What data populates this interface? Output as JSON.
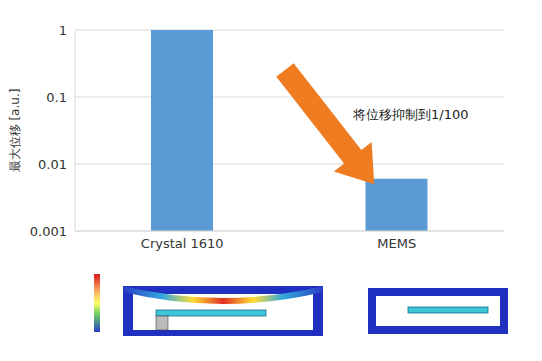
{
  "chart_data": {
    "type": "bar",
    "categories": [
      "Crystal 1610",
      "MEMS"
    ],
    "values": [
      1,
      0.006
    ],
    "color": "#5b9bd5",
    "ylabel": "最大位移 [a.u.]",
    "ylim": [
      0.001,
      1
    ],
    "yticks": [
      0.001,
      0.01,
      0.1,
      1
    ],
    "log": "y",
    "grid": true,
    "annotation": "将位移抑制到1/100",
    "arrow_color": "#f07c22"
  }
}
